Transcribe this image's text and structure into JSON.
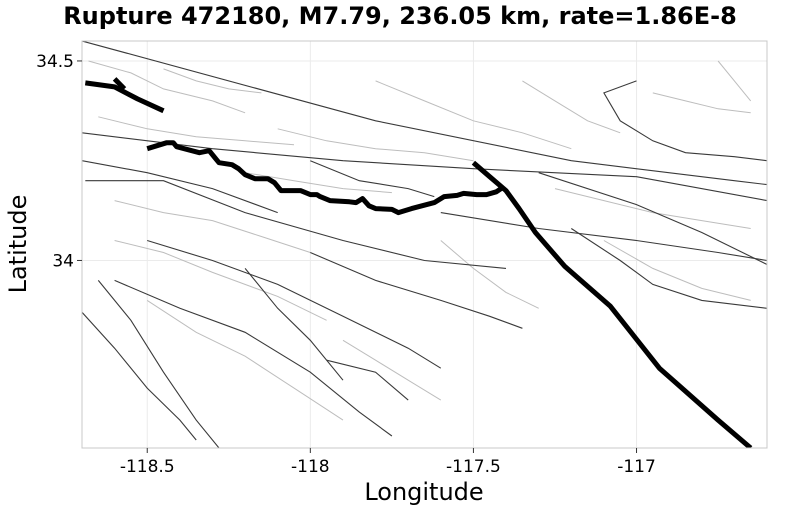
{
  "title": "Rupture 472180, M7.79, 236.05 km, rate=1.86E-8",
  "map": {
    "xlabel": "Longitude",
    "ylabel": "Latitude",
    "xlim": [
      -118.7,
      -116.6
    ],
    "ylim": [
      33.53,
      34.55
    ],
    "x_ticks": [
      -118.5,
      -118.0,
      -117.5,
      -117.0
    ],
    "x_tick_labels": [
      "-118.5",
      "-118",
      "-117.5",
      "-117"
    ],
    "y_ticks": [
      34.0,
      34.5
    ],
    "y_tick_labels": [
      "34",
      "34.5"
    ],
    "colors": {
      "rupture": "#000000",
      "fault": "#3a3a3a",
      "subsection": "#bdbdbd",
      "grid": "#ebebeb"
    },
    "rupture_traces": [
      [
        [
          -118.69,
          34.445
        ],
        [
          -118.6,
          34.435
        ],
        [
          -118.53,
          34.405
        ],
        [
          -118.45,
          34.375
        ]
      ],
      [
        [
          -118.6,
          34.455
        ],
        [
          -118.57,
          34.43
        ]
      ],
      [
        [
          -118.5,
          34.28
        ],
        [
          -118.44,
          34.295
        ],
        [
          -118.42,
          34.295
        ],
        [
          -118.41,
          34.285
        ],
        [
          -118.34,
          34.27
        ],
        [
          -118.31,
          34.275
        ],
        [
          -118.29,
          34.255
        ],
        [
          -118.28,
          34.245
        ],
        [
          -118.24,
          34.24
        ],
        [
          -118.22,
          34.23
        ],
        [
          -118.2,
          34.215
        ],
        [
          -118.17,
          34.205
        ],
        [
          -118.13,
          34.205
        ],
        [
          -118.11,
          34.195
        ],
        [
          -118.09,
          34.175
        ],
        [
          -118.03,
          34.175
        ],
        [
          -118.0,
          34.165
        ],
        [
          -117.98,
          34.165
        ],
        [
          -117.97,
          34.16
        ],
        [
          -117.94,
          34.15
        ],
        [
          -117.88,
          34.147
        ],
        [
          -117.86,
          34.145
        ],
        [
          -117.84,
          34.155
        ],
        [
          -117.82,
          34.137
        ],
        [
          -117.8,
          34.13
        ],
        [
          -117.75,
          34.128
        ],
        [
          -117.73,
          34.12
        ],
        [
          -117.69,
          34.13
        ],
        [
          -117.62,
          34.145
        ],
        [
          -117.59,
          34.16
        ],
        [
          -117.55,
          34.163
        ],
        [
          -117.53,
          34.168
        ],
        [
          -117.49,
          34.165
        ],
        [
          -117.46,
          34.165
        ],
        [
          -117.43,
          34.172
        ],
        [
          -117.41,
          34.183
        ]
      ],
      [
        [
          -117.5,
          34.245
        ],
        [
          -117.45,
          34.21
        ],
        [
          -117.4,
          34.175
        ],
        [
          -117.36,
          34.13
        ],
        [
          -117.31,
          34.07
        ],
        [
          -117.22,
          33.985
        ],
        [
          -117.08,
          33.885
        ],
        [
          -116.93,
          33.73
        ],
        [
          -116.75,
          33.6
        ],
        [
          -116.65,
          33.53
        ]
      ]
    ],
    "faults": [
      [
        [
          -118.7,
          34.55
        ],
        [
          -117.8,
          34.35
        ],
        [
          -117.2,
          34.25
        ],
        [
          -116.7,
          34.2
        ],
        [
          -116.6,
          34.19
        ]
      ],
      [
        [
          -118.7,
          34.32
        ],
        [
          -118.3,
          34.28
        ],
        [
          -117.9,
          34.25
        ],
        [
          -117.5,
          34.23
        ],
        [
          -117.0,
          34.21
        ],
        [
          -116.6,
          34.15
        ]
      ],
      [
        [
          -118.69,
          34.2
        ],
        [
          -118.45,
          34.2
        ],
        [
          -118.2,
          34.12
        ],
        [
          -117.9,
          34.05
        ],
        [
          -117.65,
          34.0
        ],
        [
          -117.4,
          33.98
        ]
      ],
      [
        [
          -118.65,
          33.95
        ],
        [
          -118.55,
          33.85
        ],
        [
          -118.45,
          33.72
        ],
        [
          -118.35,
          33.6
        ],
        [
          -118.28,
          33.53
        ]
      ],
      [
        [
          -118.7,
          33.87
        ],
        [
          -118.6,
          33.78
        ],
        [
          -118.5,
          33.68
        ],
        [
          -118.4,
          33.6
        ],
        [
          -118.35,
          33.55
        ]
      ],
      [
        [
          -118.6,
          33.95
        ],
        [
          -118.4,
          33.88
        ],
        [
          -118.2,
          33.82
        ],
        [
          -118.0,
          33.72
        ],
        [
          -117.85,
          33.62
        ],
        [
          -117.75,
          33.56
        ]
      ],
      [
        [
          -118.5,
          34.05
        ],
        [
          -118.3,
          34.0
        ],
        [
          -118.1,
          33.94
        ],
        [
          -117.9,
          33.86
        ],
        [
          -117.7,
          33.78
        ],
        [
          -117.6,
          33.73
        ]
      ],
      [
        [
          -118.0,
          34.02
        ],
        [
          -117.8,
          33.95
        ],
        [
          -117.6,
          33.9
        ],
        [
          -117.45,
          33.86
        ],
        [
          -117.35,
          33.83
        ]
      ],
      [
        [
          -117.6,
          34.12
        ],
        [
          -117.3,
          34.08
        ],
        [
          -117.0,
          34.05
        ],
        [
          -116.75,
          34.02
        ],
        [
          -116.6,
          34.0
        ]
      ],
      [
        [
          -117.3,
          34.22
        ],
        [
          -117.0,
          34.14
        ],
        [
          -116.8,
          34.07
        ],
        [
          -116.6,
          33.99
        ]
      ],
      [
        [
          -118.7,
          34.25
        ],
        [
          -118.5,
          34.22
        ],
        [
          -118.3,
          34.18
        ],
        [
          -118.1,
          34.12
        ]
      ],
      [
        [
          -117.0,
          34.45
        ],
        [
          -117.1,
          34.42
        ],
        [
          -117.05,
          34.35
        ],
        [
          -116.95,
          34.3
        ],
        [
          -116.85,
          34.27
        ],
        [
          -116.7,
          34.26
        ],
        [
          -116.6,
          34.25
        ]
      ],
      [
        [
          -117.2,
          34.08
        ],
        [
          -117.05,
          34.0
        ],
        [
          -116.95,
          33.94
        ],
        [
          -116.8,
          33.9
        ],
        [
          -116.6,
          33.88
        ]
      ],
      [
        [
          -118.2,
          33.98
        ],
        [
          -118.1,
          33.88
        ],
        [
          -118.0,
          33.8
        ],
        [
          -117.9,
          33.7
        ]
      ],
      [
        [
          -117.95,
          33.75
        ],
        [
          -117.8,
          33.72
        ],
        [
          -117.7,
          33.65
        ]
      ],
      [
        [
          -118.0,
          34.25
        ],
        [
          -117.85,
          34.2
        ],
        [
          -117.7,
          34.18
        ],
        [
          -117.62,
          34.16
        ]
      ]
    ],
    "subsections": [
      [
        [
          -118.68,
          34.5
        ],
        [
          -118.55,
          34.47
        ],
        [
          -118.45,
          34.43
        ],
        [
          -118.3,
          34.4
        ],
        [
          -118.2,
          34.37
        ]
      ],
      [
        [
          -118.65,
          34.36
        ],
        [
          -118.5,
          34.33
        ],
        [
          -118.35,
          34.31
        ],
        [
          -118.2,
          34.3
        ],
        [
          -118.05,
          34.29
        ]
      ],
      [
        [
          -118.1,
          34.33
        ],
        [
          -117.95,
          34.3
        ],
        [
          -117.8,
          34.28
        ],
        [
          -117.65,
          34.27
        ],
        [
          -117.5,
          34.25
        ]
      ],
      [
        [
          -118.6,
          34.15
        ],
        [
          -118.45,
          34.12
        ],
        [
          -118.3,
          34.1
        ],
        [
          -118.15,
          34.06
        ],
        [
          -118.0,
          34.02
        ]
      ],
      [
        [
          -118.6,
          34.05
        ],
        [
          -118.45,
          34.02
        ],
        [
          -118.3,
          33.97
        ],
        [
          -118.1,
          33.91
        ],
        [
          -117.95,
          33.85
        ]
      ],
      [
        [
          -118.2,
          34.22
        ],
        [
          -118.05,
          34.2
        ],
        [
          -117.9,
          34.18
        ],
        [
          -117.75,
          34.17
        ]
      ],
      [
        [
          -118.5,
          33.9
        ],
        [
          -118.35,
          33.82
        ],
        [
          -118.2,
          33.76
        ],
        [
          -118.05,
          33.68
        ],
        [
          -117.9,
          33.6
        ]
      ],
      [
        [
          -117.25,
          34.18
        ],
        [
          -117.1,
          34.15
        ],
        [
          -116.95,
          34.12
        ],
        [
          -116.8,
          34.1
        ],
        [
          -116.65,
          34.08
        ]
      ],
      [
        [
          -117.8,
          34.45
        ],
        [
          -117.65,
          34.4
        ],
        [
          -117.5,
          34.35
        ],
        [
          -117.35,
          34.32
        ],
        [
          -117.2,
          34.28
        ]
      ],
      [
        [
          -116.95,
          34.42
        ],
        [
          -116.85,
          34.4
        ],
        [
          -116.75,
          34.38
        ],
        [
          -116.65,
          34.37
        ]
      ],
      [
        [
          -117.35,
          34.45
        ],
        [
          -117.25,
          34.4
        ],
        [
          -117.15,
          34.35
        ],
        [
          -117.05,
          34.32
        ]
      ],
      [
        [
          -117.1,
          34.05
        ],
        [
          -116.95,
          33.98
        ],
        [
          -116.8,
          33.93
        ],
        [
          -116.65,
          33.9
        ]
      ],
      [
        [
          -117.6,
          34.05
        ],
        [
          -117.5,
          33.98
        ],
        [
          -117.4,
          33.92
        ],
        [
          -117.3,
          33.88
        ]
      ],
      [
        [
          -117.9,
          33.8
        ],
        [
          -117.8,
          33.75
        ],
        [
          -117.7,
          33.7
        ],
        [
          -117.6,
          33.65
        ]
      ],
      [
        [
          -118.45,
          34.48
        ],
        [
          -118.35,
          34.45
        ],
        [
          -118.25,
          34.43
        ],
        [
          -118.15,
          34.42
        ]
      ],
      [
        [
          -116.75,
          34.5
        ],
        [
          -116.7,
          34.45
        ],
        [
          -116.65,
          34.4
        ]
      ]
    ]
  }
}
